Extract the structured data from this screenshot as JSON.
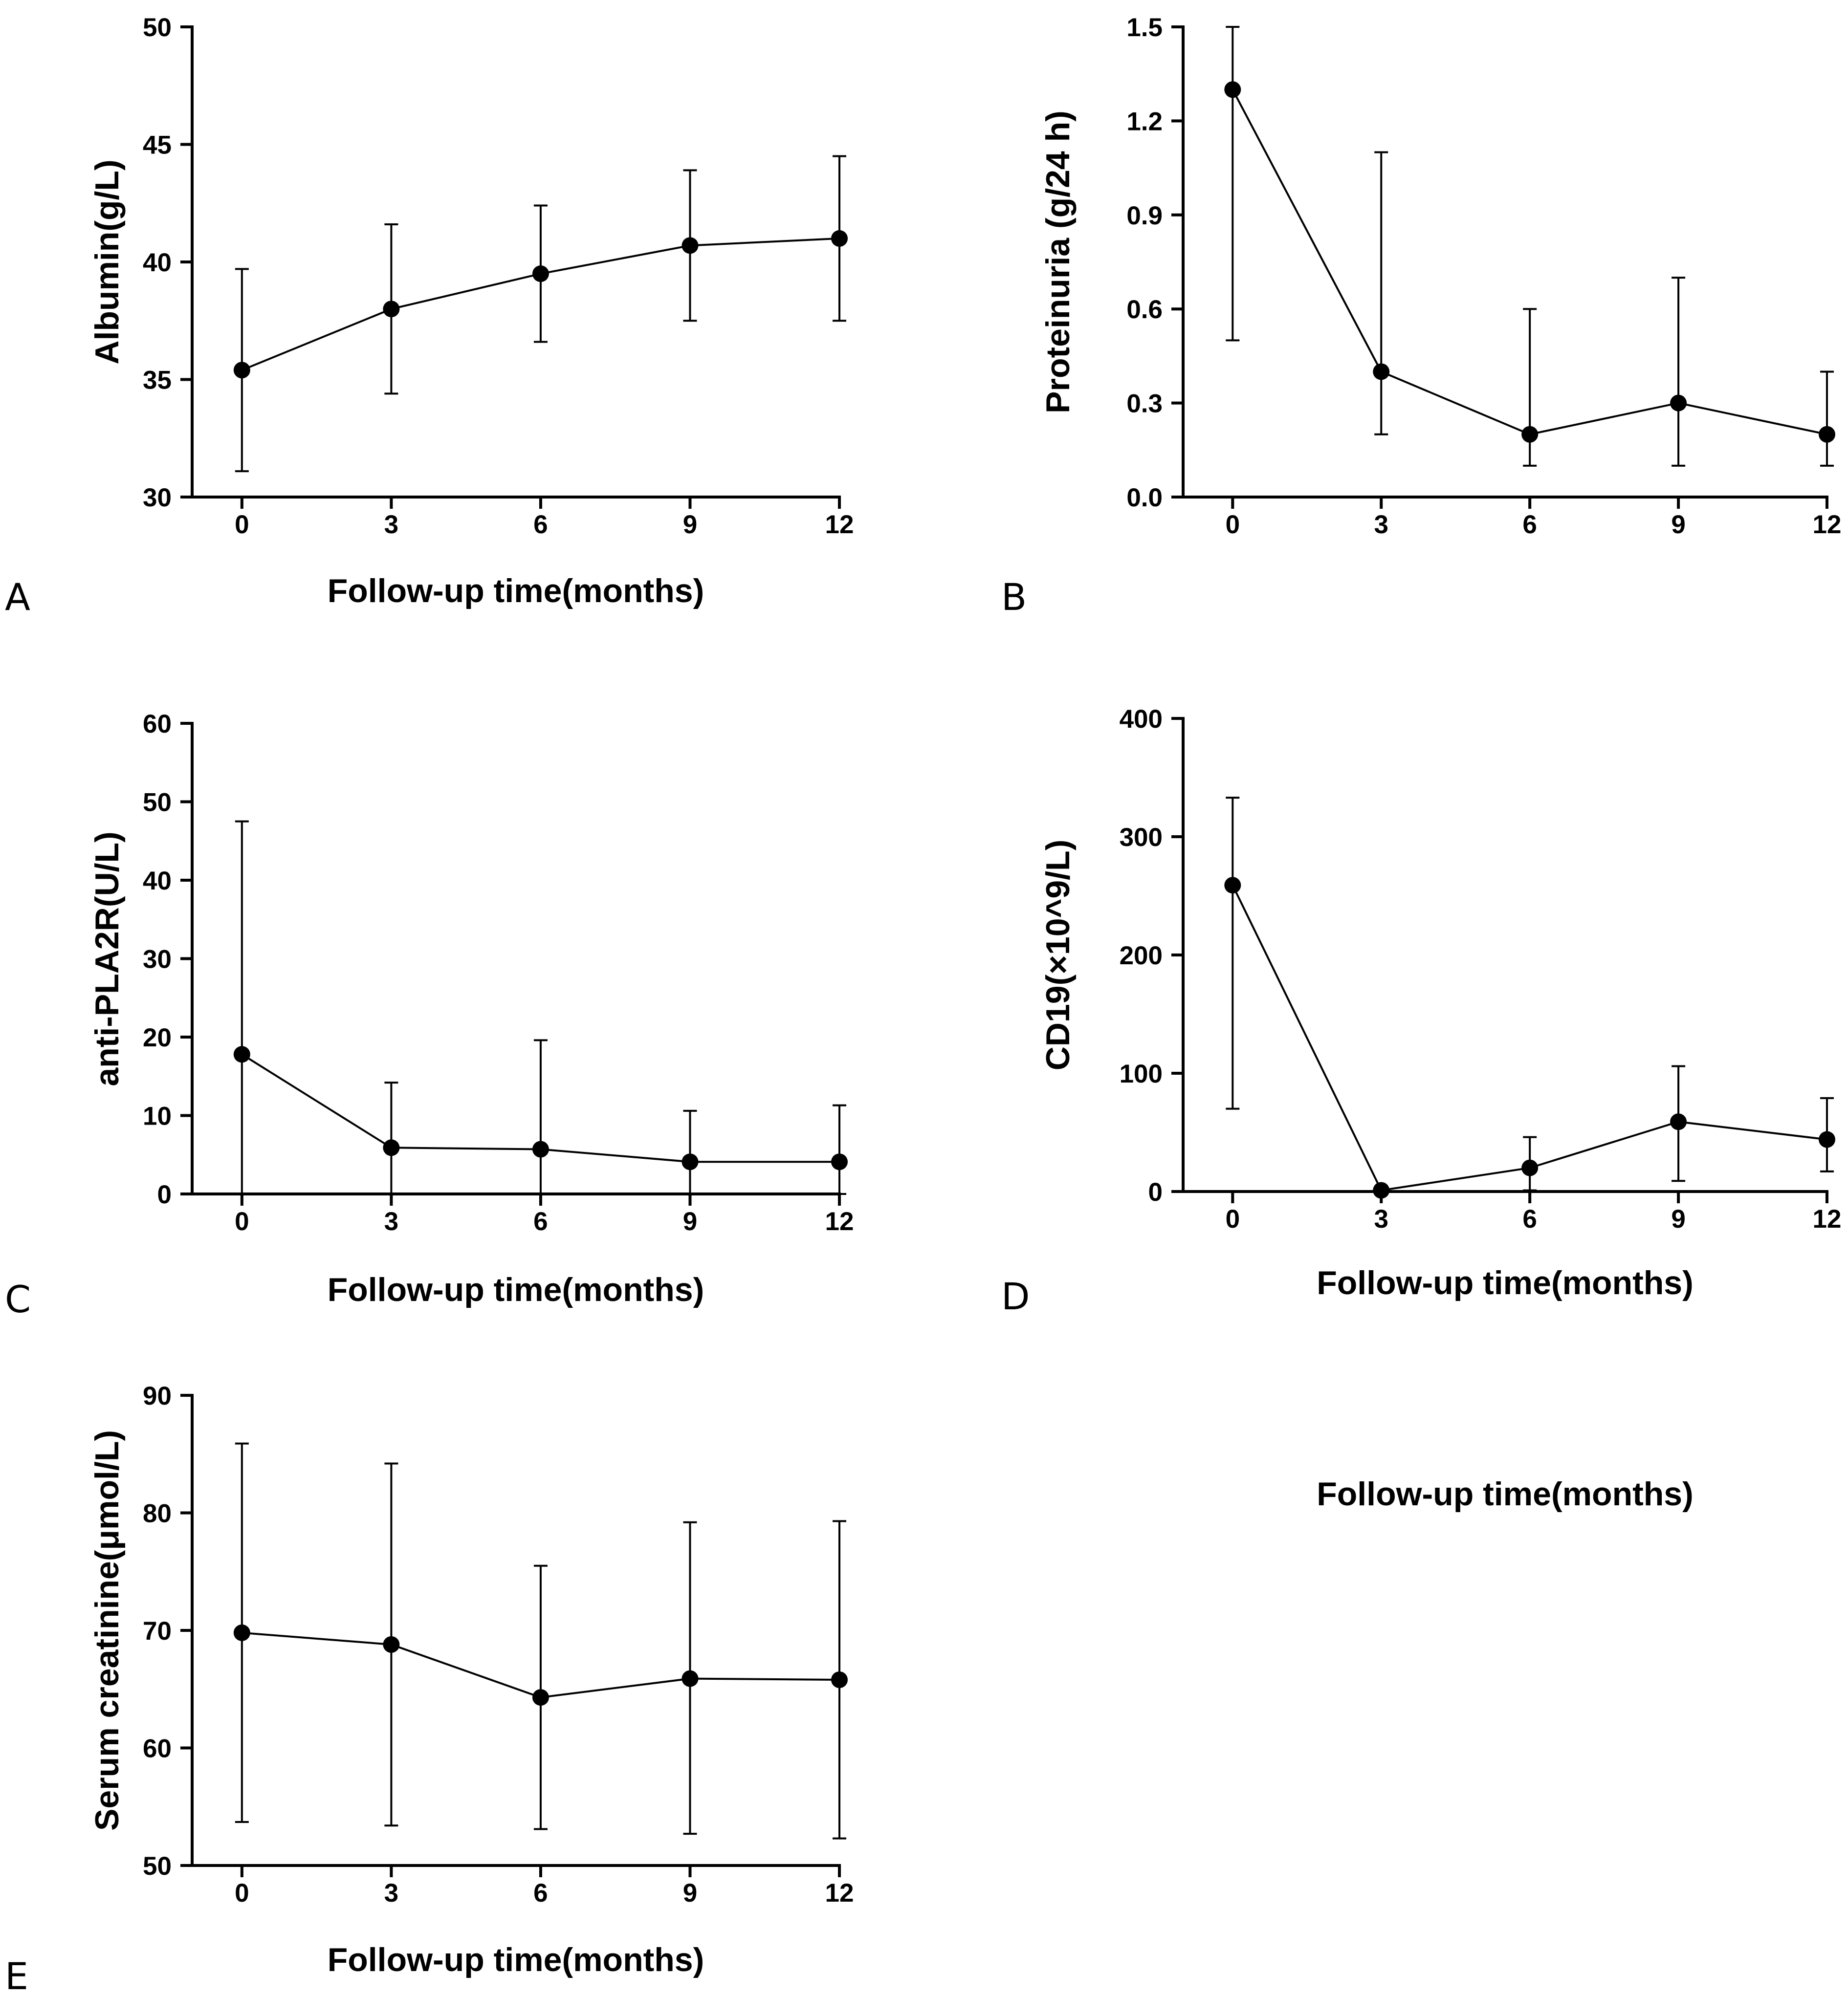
{
  "figure": {
    "panel_letters": [
      "A",
      "B",
      "C",
      "D",
      "E"
    ]
  },
  "chart_data": [
    {
      "panel": "A",
      "type": "line",
      "title": "",
      "xlabel": "Follow-up time(months)",
      "ylabel": "Albumin(g/L)",
      "x": [
        0,
        3,
        6,
        9,
        12
      ],
      "x_tick_labels": [
        "0",
        "3",
        "6",
        "9",
        "12"
      ],
      "xlim": [
        -1,
        12
      ],
      "ylim": [
        30,
        50
      ],
      "y_ticks": [
        30,
        35,
        40,
        45,
        50
      ],
      "y_tick_labels": [
        "30",
        "35",
        "40",
        "45",
        "50"
      ],
      "series": [
        {
          "name": "Albumin",
          "values": [
            35.4,
            38.0,
            39.5,
            40.7,
            41.0
          ],
          "err_low": [
            31.1,
            34.4,
            36.6,
            37.5,
            37.5
          ],
          "err_high": [
            39.7,
            41.6,
            42.4,
            43.9,
            44.5
          ]
        }
      ]
    },
    {
      "panel": "B",
      "type": "line",
      "title": "",
      "xlabel": "Follow-up time(months)",
      "ylabel": "Proteinuria (g/24 h)",
      "x": [
        0,
        3,
        6,
        9,
        12
      ],
      "x_tick_labels": [
        "0",
        "3",
        "6",
        "9",
        "12"
      ],
      "xlim": [
        -1,
        12
      ],
      "ylim": [
        0,
        1.5
      ],
      "y_ticks": [
        0,
        0.3,
        0.6,
        0.9,
        1.2,
        1.5
      ],
      "y_tick_labels": [
        "0.0",
        "0.3",
        "0.6",
        "0.9",
        "1.2",
        "1.5"
      ],
      "series": [
        {
          "name": "Proteinuria",
          "values": [
            1.3,
            0.4,
            0.2,
            0.3,
            0.2
          ],
          "err_low": [
            0.5,
            0.2,
            0.1,
            0.1,
            0.1
          ],
          "err_high": [
            1.5,
            1.1,
            0.6,
            0.7,
            0.4
          ]
        }
      ]
    },
    {
      "panel": "C",
      "type": "line",
      "title": "",
      "xlabel": "Follow-up time(months)",
      "ylabel": "anti-PLA2R(U/L)",
      "x": [
        0,
        3,
        6,
        9,
        12
      ],
      "x_tick_labels": [
        "0",
        "3",
        "6",
        "9",
        "12"
      ],
      "xlim": [
        -1,
        12
      ],
      "ylim": [
        0,
        60
      ],
      "y_ticks": [
        0,
        10,
        20,
        30,
        40,
        50,
        60
      ],
      "y_tick_labels": [
        "0",
        "10",
        "20",
        "30",
        "40",
        "50",
        "60"
      ],
      "series": [
        {
          "name": "anti-PLA2R",
          "values": [
            17.8,
            5.9,
            5.7,
            4.1,
            4.1
          ],
          "err_low": [
            0,
            0,
            0,
            0,
            0
          ],
          "err_high": [
            47.5,
            14.2,
            19.6,
            10.6,
            11.3
          ]
        }
      ]
    },
    {
      "panel": "D",
      "type": "line",
      "title": "",
      "xlabel": "Follow-up time(months)",
      "ylabel": "CD19(×10^9/L)",
      "x": [
        0,
        3,
        6,
        9,
        12
      ],
      "x_tick_labels": [
        "0",
        "3",
        "6",
        "9",
        "12"
      ],
      "xlim": [
        -1,
        12
      ],
      "ylim": [
        0,
        400
      ],
      "y_ticks": [
        0,
        100,
        200,
        300,
        400
      ],
      "y_tick_labels": [
        "0",
        "100",
        "200",
        "300",
        "400"
      ],
      "series": [
        {
          "name": "CD19",
          "values": [
            259,
            1,
            20,
            59,
            44
          ],
          "err_low": [
            70,
            0,
            1,
            9,
            17
          ],
          "err_high": [
            333,
            2,
            46,
            106,
            79
          ]
        }
      ]
    },
    {
      "panel": "E",
      "type": "line",
      "title": "",
      "xlabel": "Follow-up time(months)",
      "ylabel": "Serum creatinine(μmol/L)",
      "x": [
        0,
        3,
        6,
        9,
        12
      ],
      "x_tick_labels": [
        "0",
        "3",
        "6",
        "9",
        "12"
      ],
      "xlim": [
        -1,
        12
      ],
      "ylim": [
        50,
        90
      ],
      "y_ticks": [
        50,
        60,
        70,
        80,
        90
      ],
      "y_tick_labels": [
        "50",
        "60",
        "70",
        "80",
        "90"
      ],
      "series": [
        {
          "name": "Serum creatinine",
          "values": [
            69.8,
            68.8,
            64.3,
            65.9,
            65.8
          ],
          "err_low": [
            53.7,
            53.4,
            53.1,
            52.7,
            52.3
          ],
          "err_high": [
            85.9,
            84.2,
            75.5,
            79.2,
            79.3
          ]
        }
      ]
    }
  ]
}
